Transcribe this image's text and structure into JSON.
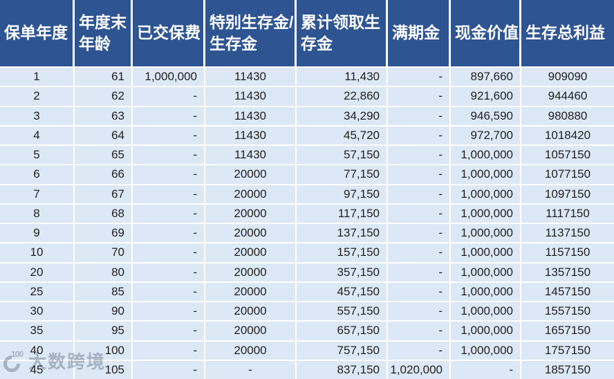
{
  "table": {
    "columns": [
      {
        "label": "保单年度"
      },
      {
        "label": "年度末\n年龄"
      },
      {
        "label": "已交保费"
      },
      {
        "label": "特别生存金/\n生存金"
      },
      {
        "label": "累计领取生\n存金"
      },
      {
        "label": "满期金"
      },
      {
        "label": "现金价值"
      },
      {
        "label": "生存总利益"
      }
    ],
    "rows": [
      [
        "1",
        "61",
        "1,000,000",
        "11430",
        "11,430",
        "-",
        "897,660",
        "909090"
      ],
      [
        "2",
        "62",
        "-",
        "11430",
        "22,860",
        "-",
        "921,600",
        "944460"
      ],
      [
        "3",
        "63",
        "-",
        "11430",
        "34,290",
        "-",
        "946,590",
        "980880"
      ],
      [
        "4",
        "64",
        "-",
        "11430",
        "45,720",
        "-",
        "972,700",
        "1018420"
      ],
      [
        "5",
        "65",
        "-",
        "11430",
        "57,150",
        "-",
        "1,000,000",
        "1057150"
      ],
      [
        "6",
        "66",
        "-",
        "20000",
        "77,150",
        "-",
        "1,000,000",
        "1077150"
      ],
      [
        "7",
        "67",
        "-",
        "20000",
        "97,150",
        "-",
        "1,000,000",
        "1097150"
      ],
      [
        "8",
        "68",
        "-",
        "20000",
        "117,150",
        "-",
        "1,000,000",
        "1117150"
      ],
      [
        "9",
        "69",
        "-",
        "20000",
        "137,150",
        "-",
        "1,000,000",
        "1137150"
      ],
      [
        "10",
        "70",
        "-",
        "20000",
        "157,150",
        "-",
        "1,000,000",
        "1157150"
      ],
      [
        "20",
        "80",
        "-",
        "20000",
        "357,150",
        "-",
        "1,000,000",
        "1357150"
      ],
      [
        "25",
        "85",
        "-",
        "20000",
        "457,150",
        "-",
        "1,000,000",
        "1457150"
      ],
      [
        "30",
        "90",
        "-",
        "20000",
        "557,150",
        "-",
        "1,000,000",
        "1557150"
      ],
      [
        "35",
        "95",
        "-",
        "20000",
        "657,150",
        "-",
        "1,000,000",
        "1657150"
      ],
      [
        "40",
        "100",
        "-",
        "20000",
        "757,150",
        "-",
        "1,000,000",
        "1757150"
      ],
      [
        "45",
        "105",
        "-",
        "-",
        "837,150",
        "1,020,000",
        "-",
        "1857150"
      ]
    ]
  },
  "watermark": {
    "logo_number": "100",
    "text": "大数跨境"
  },
  "colors": {
    "header_bg": "#2e5492",
    "row_bg": "#dce8f5",
    "separator": "#ffffff",
    "header_text": "#ffffff",
    "body_text": "#1e1e1e"
  }
}
